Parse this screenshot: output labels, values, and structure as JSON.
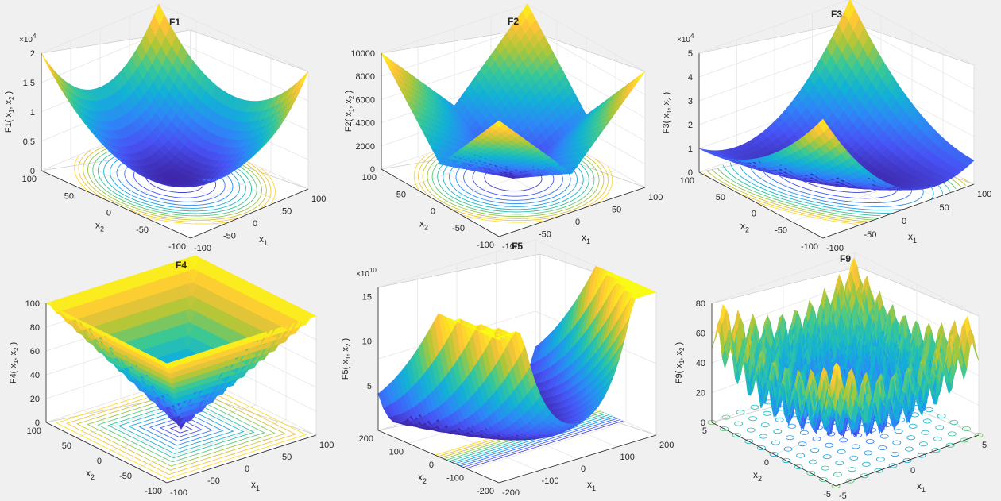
{
  "figure": {
    "background": "#f0f0f0",
    "colormap": "parula"
  },
  "chart_data": [
    {
      "id": "F1",
      "type": "surface3d",
      "title": "F1",
      "function": "sum of squares",
      "xlabel_main": "x",
      "xlabel_sub": "1",
      "ylabel_main": "x",
      "ylabel_sub": "2",
      "zlabel": {
        "pre": "F1( x",
        "s1": "1",
        "mid": ", x",
        "s2": "2",
        "post": " )"
      },
      "xlim": [
        -100,
        100
      ],
      "ylim": [
        -100,
        100
      ],
      "zlim": [
        0,
        20000
      ],
      "xticks": [
        "-100",
        "-50",
        "0",
        "50",
        "100"
      ],
      "yticks": [
        "-100",
        "-50",
        "0",
        "50",
        "100"
      ],
      "zticks": [
        "0",
        "0.5",
        "1",
        "1.5",
        "2"
      ],
      "exponent": {
        "base": "×10",
        "power": "4"
      },
      "contour": true
    },
    {
      "id": "F2",
      "type": "surface3d",
      "title": "F2",
      "function": "|x1|+|x2|+|x1|*|x2|",
      "xlabel_main": "x",
      "xlabel_sub": "1",
      "ylabel_main": "x",
      "ylabel_sub": "2",
      "zlabel": {
        "pre": "F2( x",
        "s1": "1",
        "mid": ", x",
        "s2": "2",
        "post": " )"
      },
      "xlim": [
        -100,
        100
      ],
      "ylim": [
        -100,
        100
      ],
      "zlim": [
        0,
        10000
      ],
      "xticks": [
        "-100",
        "-50",
        "0",
        "50",
        "100"
      ],
      "yticks": [
        "-100",
        "-50",
        "0",
        "50",
        "100"
      ],
      "zticks": [
        "0",
        "2000",
        "4000",
        "6000",
        "8000",
        "10000"
      ],
      "contour": true
    },
    {
      "id": "F3",
      "type": "surface3d",
      "title": "F3",
      "function": "sum of cumulative squares",
      "xlabel_main": "x",
      "xlabel_sub": "1",
      "ylabel_main": "x",
      "ylabel_sub": "2",
      "zlabel": {
        "pre": "F3( x",
        "s1": "1",
        "mid": ", x",
        "s2": "2",
        "post": " )"
      },
      "xlim": [
        -100,
        100
      ],
      "ylim": [
        -100,
        100
      ],
      "zlim": [
        0,
        50000
      ],
      "xticks": [
        "-100",
        "-50",
        "0",
        "50",
        "100"
      ],
      "yticks": [
        "-100",
        "-50",
        "0",
        "50",
        "100"
      ],
      "zticks": [
        "0",
        "1",
        "2",
        "3",
        "4",
        "5"
      ],
      "exponent": {
        "base": "×10",
        "power": "4"
      },
      "contour": true
    },
    {
      "id": "F4",
      "type": "surface3d",
      "title": "F4",
      "function": "max(|x1|,|x2|)",
      "xlabel_main": "x",
      "xlabel_sub": "1",
      "ylabel_main": "x",
      "ylabel_sub": "2",
      "zlabel": {
        "pre": "F4( x",
        "s1": "1",
        "mid": ", x",
        "s2": "2",
        "post": " )"
      },
      "xlim": [
        -100,
        100
      ],
      "ylim": [
        -100,
        100
      ],
      "zlim": [
        0,
        100
      ],
      "xticks": [
        "-100",
        "-50",
        "0",
        "50",
        "100"
      ],
      "yticks": [
        "-100",
        "-50",
        "0",
        "50",
        "100"
      ],
      "zticks": [
        "0",
        "20",
        "40",
        "60",
        "80",
        "100"
      ],
      "contour": true
    },
    {
      "id": "F5",
      "type": "surface3d",
      "title": "F5",
      "function": "Rosenbrock",
      "xlabel_main": "x",
      "xlabel_sub": "1",
      "ylabel_main": "x",
      "ylabel_sub": "2",
      "zlabel": {
        "pre": "F5( x",
        "s1": "1",
        "mid": ", x",
        "s2": "2",
        "post": " )"
      },
      "xlim": [
        -200,
        200
      ],
      "ylim": [
        -200,
        200
      ],
      "zlim": [
        0,
        160000000000
      ],
      "xticks": [
        "-200",
        "-100",
        "0",
        "100",
        "200"
      ],
      "yticks": [
        "-200",
        "-100",
        "0",
        "100",
        "200"
      ],
      "zticks": [
        "5",
        "10",
        "15"
      ],
      "exponent": {
        "base": "×10",
        "power": "10"
      },
      "contour": true
    },
    {
      "id": "F9",
      "type": "surface3d",
      "title": "F9",
      "function": "Rastrigin",
      "xlabel_main": "x",
      "xlabel_sub": "1",
      "ylabel_main": "x",
      "ylabel_sub": "2",
      "zlabel": {
        "pre": "F9( x",
        "s1": "1",
        "mid": ", x",
        "s2": "2",
        "post": " )"
      },
      "xlim": [
        -5,
        5
      ],
      "ylim": [
        -5,
        5
      ],
      "zlim": [
        0,
        80
      ],
      "xticks": [
        "-5",
        "0",
        "5"
      ],
      "yticks": [
        "-5",
        "0",
        "5"
      ],
      "zticks": [
        "0",
        "20",
        "40",
        "60",
        "80"
      ],
      "contour": true
    }
  ]
}
